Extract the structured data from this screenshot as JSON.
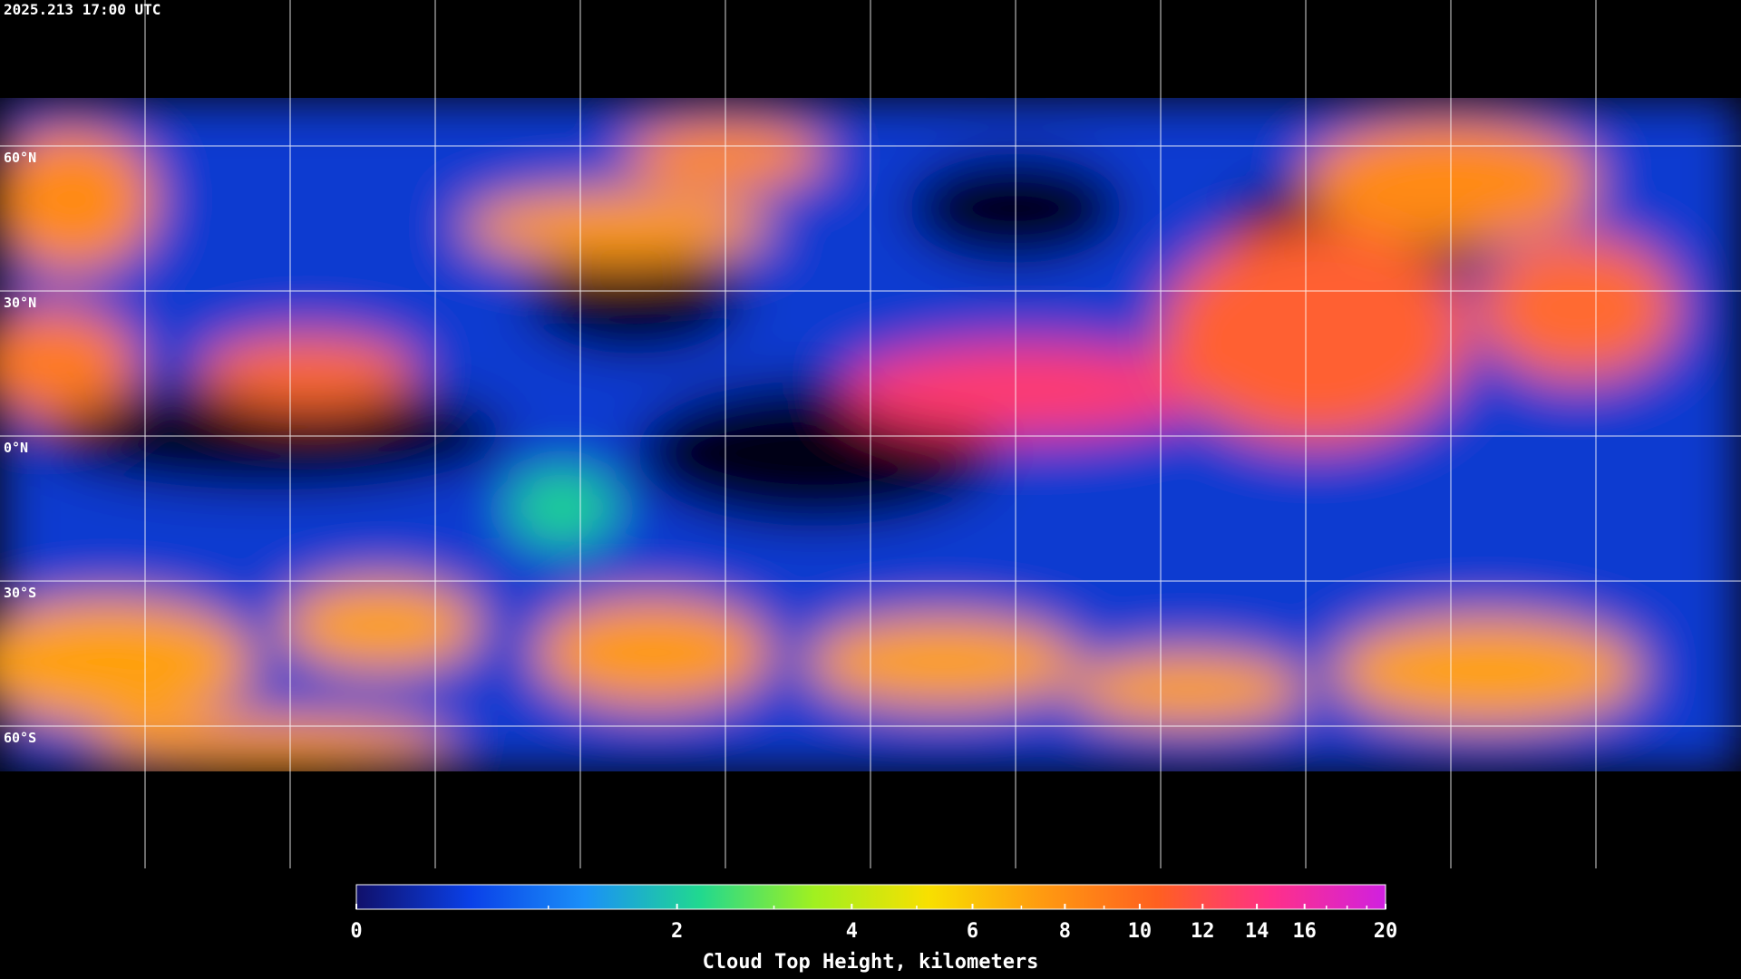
{
  "header": {
    "title": "2025.213 17:00 UTC"
  },
  "map": {
    "lat_labels": [
      "60°N",
      "30°N",
      "0°N",
      "30°S",
      "60°S"
    ]
  },
  "colorbar": {
    "label": "Cloud Top Height, kilometers",
    "xlim": [
      0,
      20
    ],
    "xticks": [
      0,
      2,
      4,
      6,
      8,
      10,
      12,
      14,
      16,
      20
    ],
    "minor_ticks": [
      1,
      3,
      5,
      7,
      9,
      17,
      18,
      19
    ],
    "colormap": [
      "#10106a",
      "#0a40e8",
      "#1a90f8",
      "#20d890",
      "#a0f020",
      "#f8e000",
      "#ff9a10",
      "#ff6020",
      "#ff3088",
      "#d020e0"
    ]
  }
}
